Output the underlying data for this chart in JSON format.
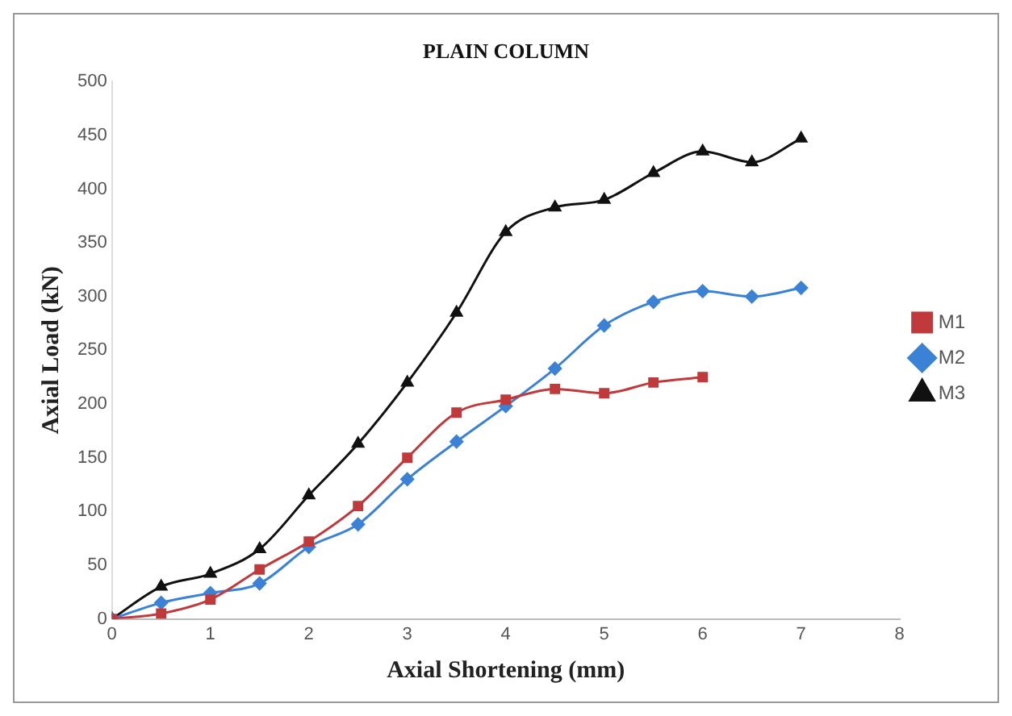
{
  "chart_data": {
    "type": "line",
    "title": "PLAIN COLUMN",
    "xlabel": "Axial Shortening (mm)",
    "ylabel": "Axial Load (kN)",
    "xlim": [
      0,
      8
    ],
    "xticks": [
      0,
      1,
      2,
      3,
      4,
      5,
      6,
      7,
      8
    ],
    "ylim": [
      0,
      500
    ],
    "yticks": [
      0,
      50,
      100,
      150,
      200,
      250,
      300,
      350,
      400,
      450,
      500
    ],
    "grid": false,
    "legend": "right",
    "series": [
      {
        "name": "M1",
        "color": "#c0393b",
        "marker": "square",
        "x": [
          0,
          0.5,
          1,
          1.5,
          2,
          2.5,
          3,
          3.5,
          4,
          4.5,
          5,
          5.5,
          6
        ],
        "values": [
          0,
          5,
          18,
          46,
          72,
          105,
          150,
          192,
          204,
          214,
          210,
          220,
          225
        ]
      },
      {
        "name": "M2",
        "color": "#3b82d6",
        "marker": "diamond",
        "x": [
          0,
          0.5,
          1,
          1.5,
          2,
          2.5,
          3,
          3.5,
          4,
          4.5,
          5,
          5.5,
          6,
          6.5,
          7
        ],
        "values": [
          0,
          15,
          24,
          33,
          67,
          88,
          130,
          165,
          198,
          233,
          273,
          295,
          305,
          300,
          308
        ]
      },
      {
        "name": "M3",
        "color": "#111111",
        "marker": "triangle",
        "x": [
          0,
          0.5,
          1,
          1.5,
          2,
          2.5,
          3,
          3.5,
          4,
          4.5,
          5,
          5.5,
          6,
          6.5,
          7
        ],
        "values": [
          0,
          30,
          42,
          65,
          115,
          163,
          220,
          285,
          360,
          383,
          390,
          415,
          435,
          425,
          447
        ]
      }
    ]
  }
}
